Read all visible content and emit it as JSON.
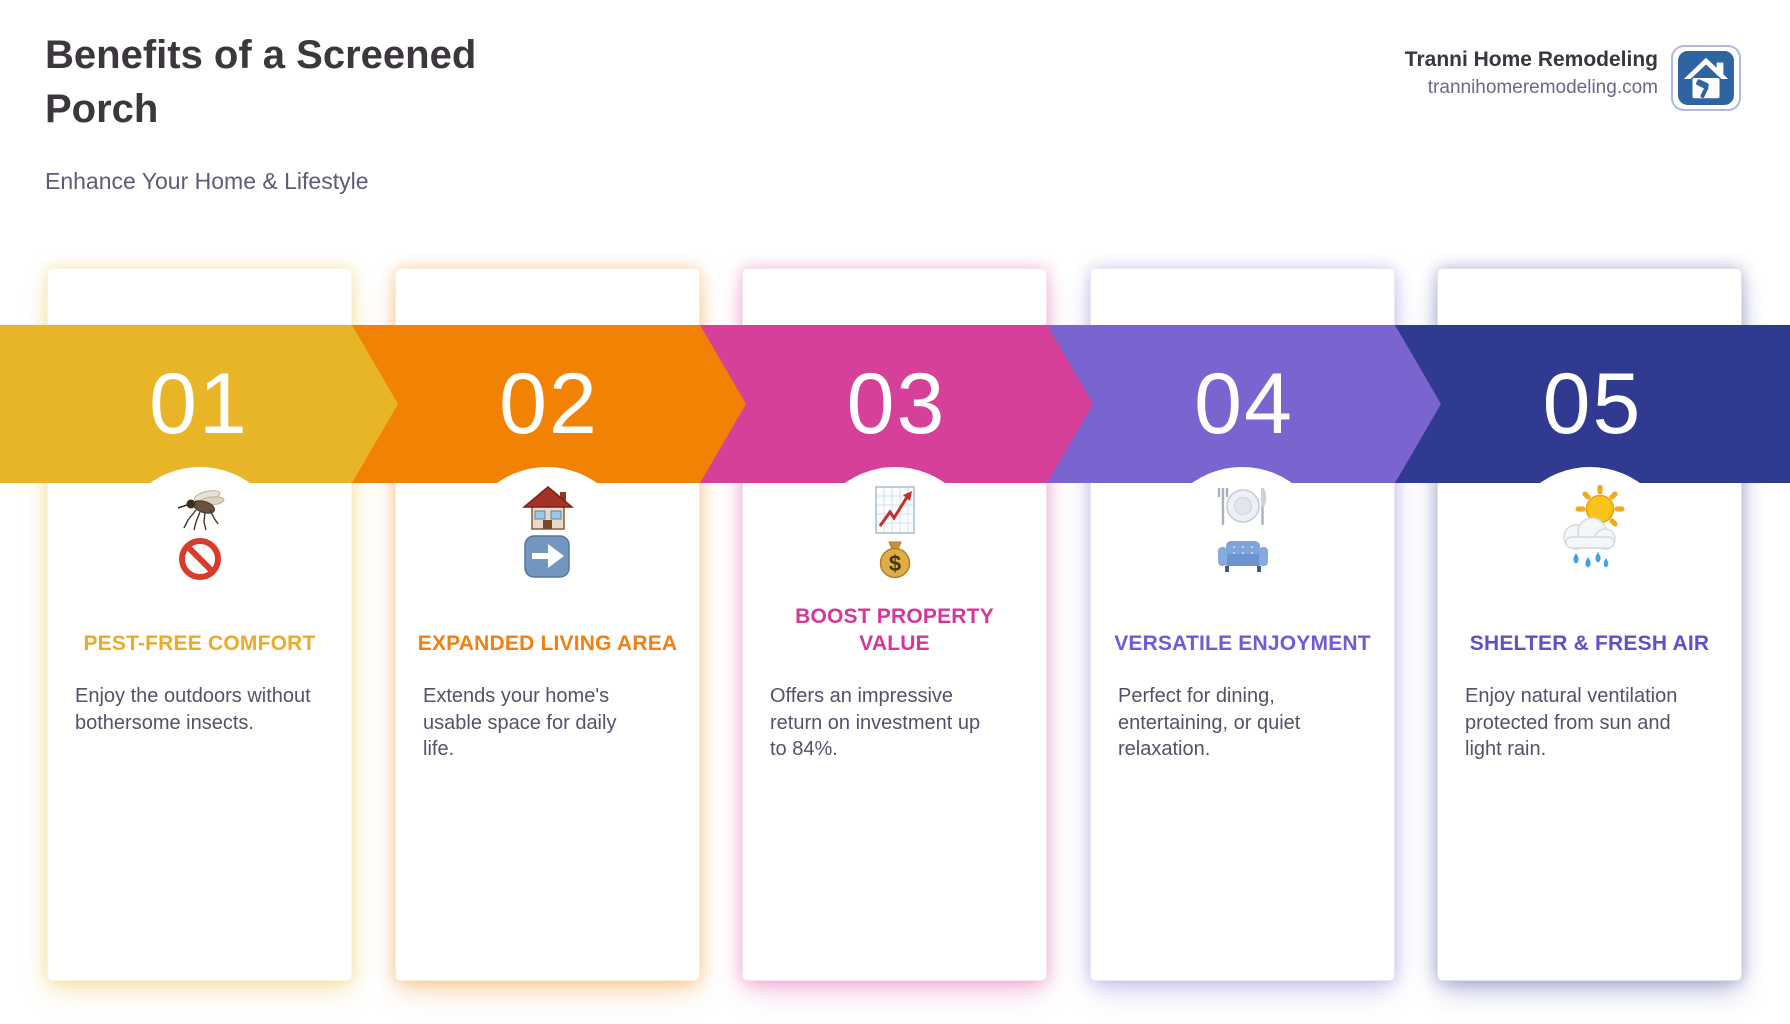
{
  "header": {
    "title_lines": [
      "Benefits of a Screened",
      "Porch"
    ],
    "subtitle": "Enhance Your Home & Lifestyle",
    "brand": {
      "name": "Tranni Home Remodeling",
      "url": "trannihomeremodeling.com",
      "logo_icon": "house-hammer-icon",
      "logo_color": "#2F64A0",
      "logo_border_color": "#AFB9E4"
    }
  },
  "steps": [
    {
      "number": "01",
      "band_color": "#E8B428",
      "title_color": "#EBAB25",
      "icon": "mosquito-prohibited-icon",
      "title_lines": [
        "PEST-FREE COMFORT"
      ],
      "description_lines": [
        "Enjoy the outdoors without",
        "bothersome insects."
      ]
    },
    {
      "number": "02",
      "band_color": "#F28204",
      "title_color": "#F17F13",
      "icon": "house-arrow-icon",
      "title_lines": [
        "EXPANDED LIVING AREA"
      ],
      "description_lines": [
        "Extends your home's",
        "usable space for daily",
        "life."
      ]
    },
    {
      "number": "03",
      "band_color": "#D74099",
      "title_color": "#D6359B",
      "icon": "chart-money-icon",
      "title_lines": [
        "BOOST PROPERTY",
        "VALUE"
      ],
      "description_lines": [
        "Offers an impressive",
        "return on investment up",
        "to 84%."
      ]
    },
    {
      "number": "04",
      "band_color": "#7A64CF",
      "title_color": "#7459D6",
      "icon": "dining-couch-icon",
      "title_lines": [
        "VERSATILE ENJOYMENT"
      ],
      "description_lines": [
        "Perfect for dining,",
        "entertaining, or quiet",
        "relaxation."
      ]
    },
    {
      "number": "05",
      "band_color": "#303A90",
      "title_color": "#5C51C9",
      "icon": "sun-rain-icon",
      "title_lines": [
        "SHELTER & FRESH AIR"
      ],
      "description_lines": [
        "Enjoy natural ventilation",
        "protected from sun and",
        "light rain."
      ]
    }
  ]
}
